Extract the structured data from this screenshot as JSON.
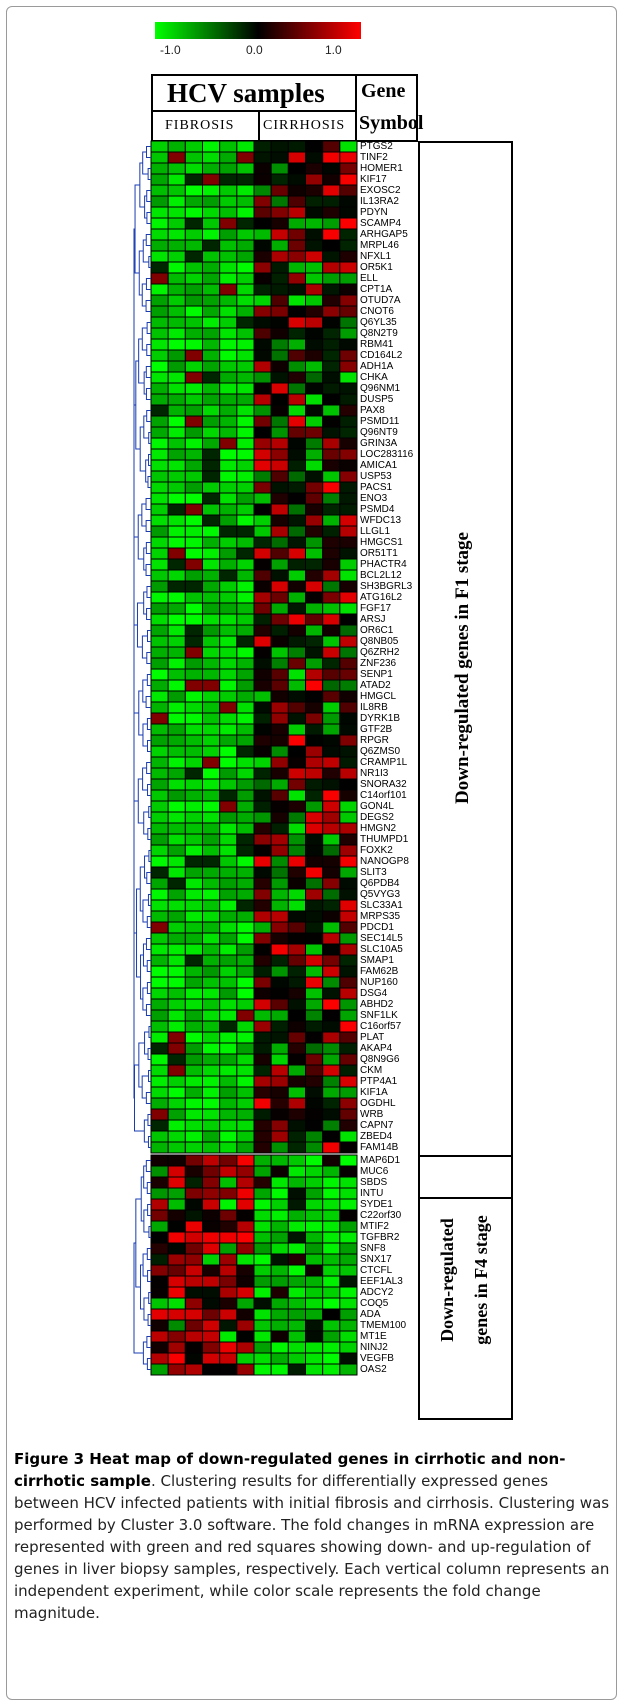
{
  "colorbar": {
    "ticks": [
      "-1.0",
      "0.0",
      "1.0"
    ]
  },
  "header": {
    "title": "HCV samples",
    "gene_title_line1": "Gene",
    "gene_title_line2": "Symbol",
    "group_fibrosis": "FIBROSIS",
    "group_cirrhosis": "CIRRHOSIS"
  },
  "panel1": {
    "label": "Down-regulated genes in F1 stage",
    "genes": [
      "PTGS2",
      "TINF2",
      "HOMER1",
      "KIF17",
      "EXOSC2",
      "IL13RA2",
      "PDYN",
      "SCAMP4",
      "ARHGAP5",
      "MRPL46",
      "NFXL1",
      "OR5K1",
      "ELL",
      "CPT1A",
      "OTUD7A",
      "CNOT6",
      "Q6YL35",
      "Q8N2T9",
      "RBM41",
      "CD164L2",
      "ADH1A",
      "CHKA",
      "Q96NM1",
      "DUSP5",
      "PAX8",
      "PSMD11",
      "Q96NT9",
      "GRIN3A",
      "LOC283116",
      "AMICA1",
      "USP53",
      "PACS1",
      "ENO3",
      "PSMD4",
      "WFDC13",
      "LLGL1",
      "HMGCS1",
      "OR51T1",
      "PHACTR4",
      "BCL2L12",
      "SH3BGRL3",
      "ATG16L2",
      "FGF17",
      "ARSJ",
      "OR6C1",
      "Q8NB05",
      "Q6ZRH2",
      "ZNF236",
      "SENP1",
      "ATAD2",
      "HMGCL",
      "IL8RB",
      "DYRK1B",
      "GTF2B",
      "RPGR",
      "Q6ZMS0",
      "CRAMP1L",
      "NR1I3",
      "SNORA32",
      "C14orf101",
      "GON4L",
      "DEGS2",
      "HMGN2",
      "THUMPD1",
      "FOXK2",
      "NANOGP8",
      "SLIT3",
      "Q6PDB4",
      "Q5VYG3",
      "SLC33A1",
      "MRPS35",
      "PDCD1",
      "SEC14L5",
      "SLC10A5",
      "SMAP1",
      "FAM62B",
      "NUP160",
      "DSG4",
      "ABHD2",
      "SNF1LK",
      "C16orf57",
      "PLAT",
      "AKAP4",
      "Q8N9G6",
      "CKM",
      "PTP4A1",
      "KIF1A",
      "OGDHL",
      "WRB",
      "CAPN7",
      "ZBED4",
      "FAM14B"
    ]
  },
  "panel2": {
    "label_line1": "Down-regulated",
    "label_line2": "genes in F4 stage",
    "genes": [
      "MAP6D1",
      "MUC6",
      "SBDS",
      "INTU",
      "SYDE1",
      "C22orf30",
      "MTIF2",
      "TGFBR2",
      "SNF8",
      "SNX17",
      "CTCFL",
      "EEF1AL3",
      "ADCY2",
      "COQ5",
      "ADA",
      "TMEM100",
      "MT1E",
      "NINJ2",
      "VEGFB",
      "OAS2"
    ]
  },
  "caption": {
    "bold": "Figure 3 Heat map of down-regulated genes in cirrhotic and non-cirrhotic sample",
    "text": ". Clustering results for differentially expressed genes between HCV infected patients with initial fibrosis and cirrhosis. Clustering was performed by Cluster 3.0 software. The fold changes in mRNA expression are represented with green and red squares showing down- and up-regulation of genes in liver biopsy samples, respectively. Each vertical column represents an independent experiment, while color scale represents the fold change magnitude."
  },
  "colors": {
    "down": "#00ff00",
    "zero": "#000000",
    "up": "#ff0000"
  }
}
